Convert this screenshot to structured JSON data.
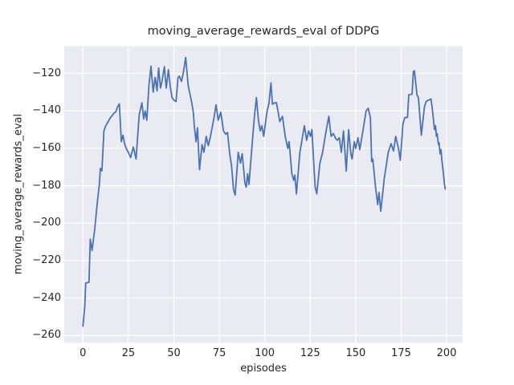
{
  "colors": {
    "figure_background": "#ffffff",
    "plot_background": "#eaeaf2",
    "grid": "#ffffff",
    "line": "#4c72b0",
    "text": "#262626"
  },
  "chart_data": {
    "type": "line",
    "title": "moving_average_rewards_eval of DDPG",
    "xlabel": "episodes",
    "ylabel": "moving_average_rewards_eval",
    "legend": null,
    "grid": true,
    "xlim": [
      -10.3,
      208.8
    ],
    "ylim": [
      -263.9,
      -105.4
    ],
    "x_ticks": [
      {
        "value": 0,
        "label": "0"
      },
      {
        "value": 25,
        "label": "25"
      },
      {
        "value": 50,
        "label": "50"
      },
      {
        "value": 75,
        "label": "75"
      },
      {
        "value": 100,
        "label": "100"
      },
      {
        "value": 125,
        "label": "125"
      },
      {
        "value": 150,
        "label": "150"
      },
      {
        "value": 175,
        "label": "175"
      },
      {
        "value": 200,
        "label": "200"
      }
    ],
    "y_ticks": [
      {
        "value": -120,
        "label": "−120"
      },
      {
        "value": -140,
        "label": "−140"
      },
      {
        "value": -160,
        "label": "−160"
      },
      {
        "value": -180,
        "label": "−180"
      },
      {
        "value": -200,
        "label": "−200"
      },
      {
        "value": -220,
        "label": "−220"
      },
      {
        "value": -240,
        "label": "−240"
      },
      {
        "value": -260,
        "label": "−260"
      }
    ],
    "series_name": "moving_average_rewards_eval",
    "points": [
      [
        0,
        -255
      ],
      [
        1,
        -244
      ],
      [
        1.5,
        -232
      ],
      [
        3.3,
        -231.5
      ],
      [
        4,
        -208.5
      ],
      [
        5,
        -214.6
      ],
      [
        6.5,
        -203
      ],
      [
        8,
        -188
      ],
      [
        9,
        -179.3
      ],
      [
        9.6,
        -170.7
      ],
      [
        10.4,
        -172
      ],
      [
        11.5,
        -150.7
      ],
      [
        12.5,
        -148
      ],
      [
        13.5,
        -146.3
      ],
      [
        15,
        -143.7
      ],
      [
        16,
        -142.6
      ],
      [
        17,
        -141.2
      ],
      [
        18,
        -140.6
      ],
      [
        19,
        -138
      ],
      [
        20,
        -136.2
      ],
      [
        21.1,
        -156.4
      ],
      [
        22,
        -153
      ],
      [
        23,
        -158
      ],
      [
        24,
        -160.5
      ],
      [
        25,
        -162.1
      ],
      [
        26.2,
        -165
      ],
      [
        27.7,
        -159.3
      ],
      [
        29.2,
        -165.7
      ],
      [
        30.9,
        -142.1
      ],
      [
        32.4,
        -135.7
      ],
      [
        33.4,
        -144.3
      ],
      [
        34.2,
        -140
      ],
      [
        35.1,
        -145
      ],
      [
        36.3,
        -126
      ],
      [
        37.4,
        -116.1
      ],
      [
        38.6,
        -130
      ],
      [
        39.7,
        -122.1
      ],
      [
        40.7,
        -129.3
      ],
      [
        41.6,
        -117.1
      ],
      [
        42.6,
        -127.8
      ],
      [
        43.5,
        -124
      ],
      [
        44.8,
        -116.4
      ],
      [
        45.8,
        -127.8
      ],
      [
        47,
        -118
      ],
      [
        47.9,
        -126.4
      ],
      [
        49,
        -132.9
      ],
      [
        50.1,
        -134.3
      ],
      [
        51.2,
        -135
      ],
      [
        52.3,
        -122.1
      ],
      [
        53,
        -121.4
      ],
      [
        54.2,
        -124.3
      ],
      [
        55.3,
        -119
      ],
      [
        56.5,
        -111.5
      ],
      [
        57.8,
        -126
      ],
      [
        58.6,
        -130
      ],
      [
        59.7,
        -135
      ],
      [
        60.7,
        -140.7
      ],
      [
        61.2,
        -147.9
      ],
      [
        62.2,
        -156.4
      ],
      [
        63,
        -149
      ],
      [
        64.1,
        -171.4
      ],
      [
        65.5,
        -158
      ],
      [
        66.5,
        -162.1
      ],
      [
        67.8,
        -153.6
      ],
      [
        68.9,
        -158.6
      ],
      [
        70,
        -154
      ],
      [
        71,
        -149.3
      ],
      [
        72,
        -144
      ],
      [
        73.2,
        -136.7
      ],
      [
        74.4,
        -145
      ],
      [
        75.8,
        -140.7
      ],
      [
        77.3,
        -150.7
      ],
      [
        78.5,
        -152.5
      ],
      [
        79.5,
        -151.5
      ],
      [
        80.7,
        -162.9
      ],
      [
        81.7,
        -169.3
      ],
      [
        82.8,
        -182.1
      ],
      [
        83.7,
        -185
      ],
      [
        85.4,
        -162.1
      ],
      [
        86.6,
        -167.9
      ],
      [
        87.6,
        -162.9
      ],
      [
        89.1,
        -178.6
      ],
      [
        89.8,
        -180.7
      ],
      [
        90.6,
        -173.6
      ],
      [
        91.3,
        -179.3
      ],
      [
        92.8,
        -160.7
      ],
      [
        94.3,
        -142.9
      ],
      [
        95.4,
        -132.9
      ],
      [
        96.5,
        -145
      ],
      [
        97.5,
        -150.7
      ],
      [
        98.4,
        -147.9
      ],
      [
        99.4,
        -153.6
      ],
      [
        101.3,
        -140
      ],
      [
        102.3,
        -136
      ],
      [
        103.4,
        -125
      ],
      [
        104.2,
        -136.4
      ],
      [
        105.3,
        -135.7
      ],
      [
        106.4,
        -135.7
      ],
      [
        107.5,
        -141.4
      ],
      [
        108.2,
        -145.7
      ],
      [
        109.7,
        -142.9
      ],
      [
        111.2,
        -153.6
      ],
      [
        112.7,
        -160
      ],
      [
        113.4,
        -156.4
      ],
      [
        114.9,
        -173.6
      ],
      [
        115.9,
        -177.1
      ],
      [
        116.5,
        -174.3
      ],
      [
        117.4,
        -184.3
      ],
      [
        119.3,
        -162.1
      ],
      [
        121.8,
        -147.9
      ],
      [
        123,
        -155.7
      ],
      [
        124.1,
        -150.7
      ],
      [
        125.2,
        -153.6
      ],
      [
        125.9,
        -150
      ],
      [
        127.7,
        -180.7
      ],
      [
        128.6,
        -184.3
      ],
      [
        130.3,
        -167.9
      ],
      [
        131.8,
        -162.1
      ],
      [
        133.5,
        -152
      ],
      [
        135.2,
        -142.9
      ],
      [
        136.5,
        -153.6
      ],
      [
        137.7,
        -152.1
      ],
      [
        139.2,
        -155
      ],
      [
        139.9,
        -155.7
      ],
      [
        141,
        -154.3
      ],
      [
        142.1,
        -162.1
      ],
      [
        143.3,
        -150.7
      ],
      [
        144.8,
        -172.1
      ],
      [
        146.1,
        -150
      ],
      [
        147.3,
        -162.9
      ],
      [
        148,
        -165.7
      ],
      [
        149.2,
        -156.4
      ],
      [
        150,
        -160
      ],
      [
        151.3,
        -154.3
      ],
      [
        152.2,
        -160.7
      ],
      [
        154,
        -150.7
      ],
      [
        155.7,
        -140
      ],
      [
        156.9,
        -138.6
      ],
      [
        158.1,
        -143.6
      ],
      [
        158.8,
        -167.1
      ],
      [
        159.4,
        -165.7
      ],
      [
        160.9,
        -180.7
      ],
      [
        162.1,
        -190
      ],
      [
        162.8,
        -183.6
      ],
      [
        163.8,
        -193.6
      ],
      [
        165.7,
        -176.4
      ],
      [
        167.9,
        -162.1
      ],
      [
        169.5,
        -157.5
      ],
      [
        170.8,
        -161.4
      ],
      [
        172,
        -153.6
      ],
      [
        173.5,
        -160
      ],
      [
        174.5,
        -166.4
      ],
      [
        176,
        -147.1
      ],
      [
        177,
        -143.6
      ],
      [
        178.5,
        -143.5
      ],
      [
        179.2,
        -131.4
      ],
      [
        181,
        -131
      ],
      [
        181.7,
        -119
      ],
      [
        182.3,
        -118.6
      ],
      [
        183.7,
        -131.4
      ],
      [
        184.5,
        -133
      ],
      [
        186.1,
        -153
      ],
      [
        187.8,
        -137.9
      ],
      [
        188.5,
        -135.7
      ],
      [
        189.2,
        -134.6
      ],
      [
        190.7,
        -134
      ],
      [
        191.4,
        -133.6
      ],
      [
        192.1,
        -138.6
      ],
      [
        192.9,
        -145.7
      ],
      [
        193.3,
        -150
      ],
      [
        193.9,
        -147.9
      ],
      [
        194.4,
        -153.6
      ],
      [
        194.8,
        -152.1
      ],
      [
        195.5,
        -157.9
      ],
      [
        195.9,
        -157.1
      ],
      [
        196.4,
        -162.9
      ],
      [
        196.9,
        -160.7
      ],
      [
        197.4,
        -166.4
      ],
      [
        198.2,
        -172.9
      ],
      [
        198.8,
        -179.3
      ],
      [
        199.3,
        -181.8
      ]
    ]
  }
}
